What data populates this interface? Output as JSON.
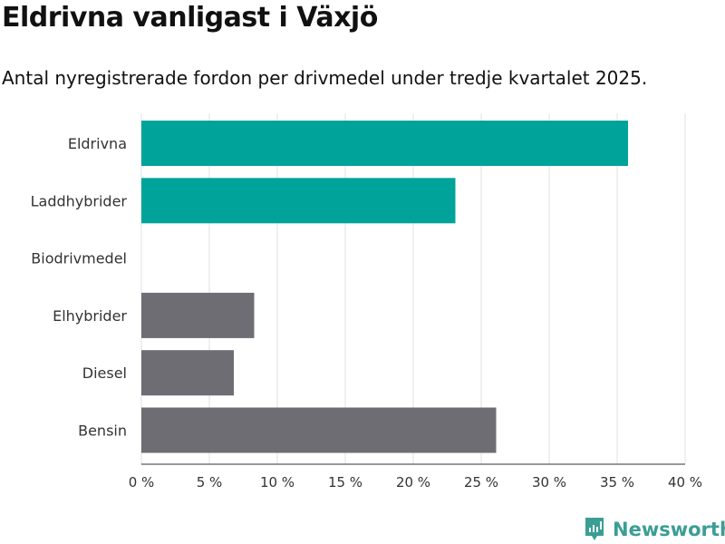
{
  "chart_data": {
    "type": "bar",
    "title": "Eldrivna vanligast i Växjö",
    "subtitle": "Antal nyregistrerade fordon per drivmedel under tredje kvartalet 2025.",
    "categories": [
      "Eldrivna",
      "Laddhybrider",
      "Biodrivmedel",
      "Elhybrider",
      "Diesel",
      "Bensin"
    ],
    "values": [
      35.8,
      23.1,
      0,
      8.3,
      6.8,
      26.1
    ],
    "colors": [
      "#00a39a",
      "#00a39a",
      "#00a39a",
      "#6e6d73",
      "#6e6d73",
      "#6e6d73"
    ],
    "xlim": [
      0,
      40
    ],
    "xticks": [
      "0 %",
      "5 %",
      "10 %",
      "15 %",
      "20 %",
      "25 %",
      "30 %",
      "35 %",
      "40 %"
    ],
    "xlabel": "",
    "ylabel": "",
    "grid": true,
    "orientation": "horizontal"
  },
  "brand": {
    "name": "Newsworthy",
    "color": "#3a9e94"
  }
}
